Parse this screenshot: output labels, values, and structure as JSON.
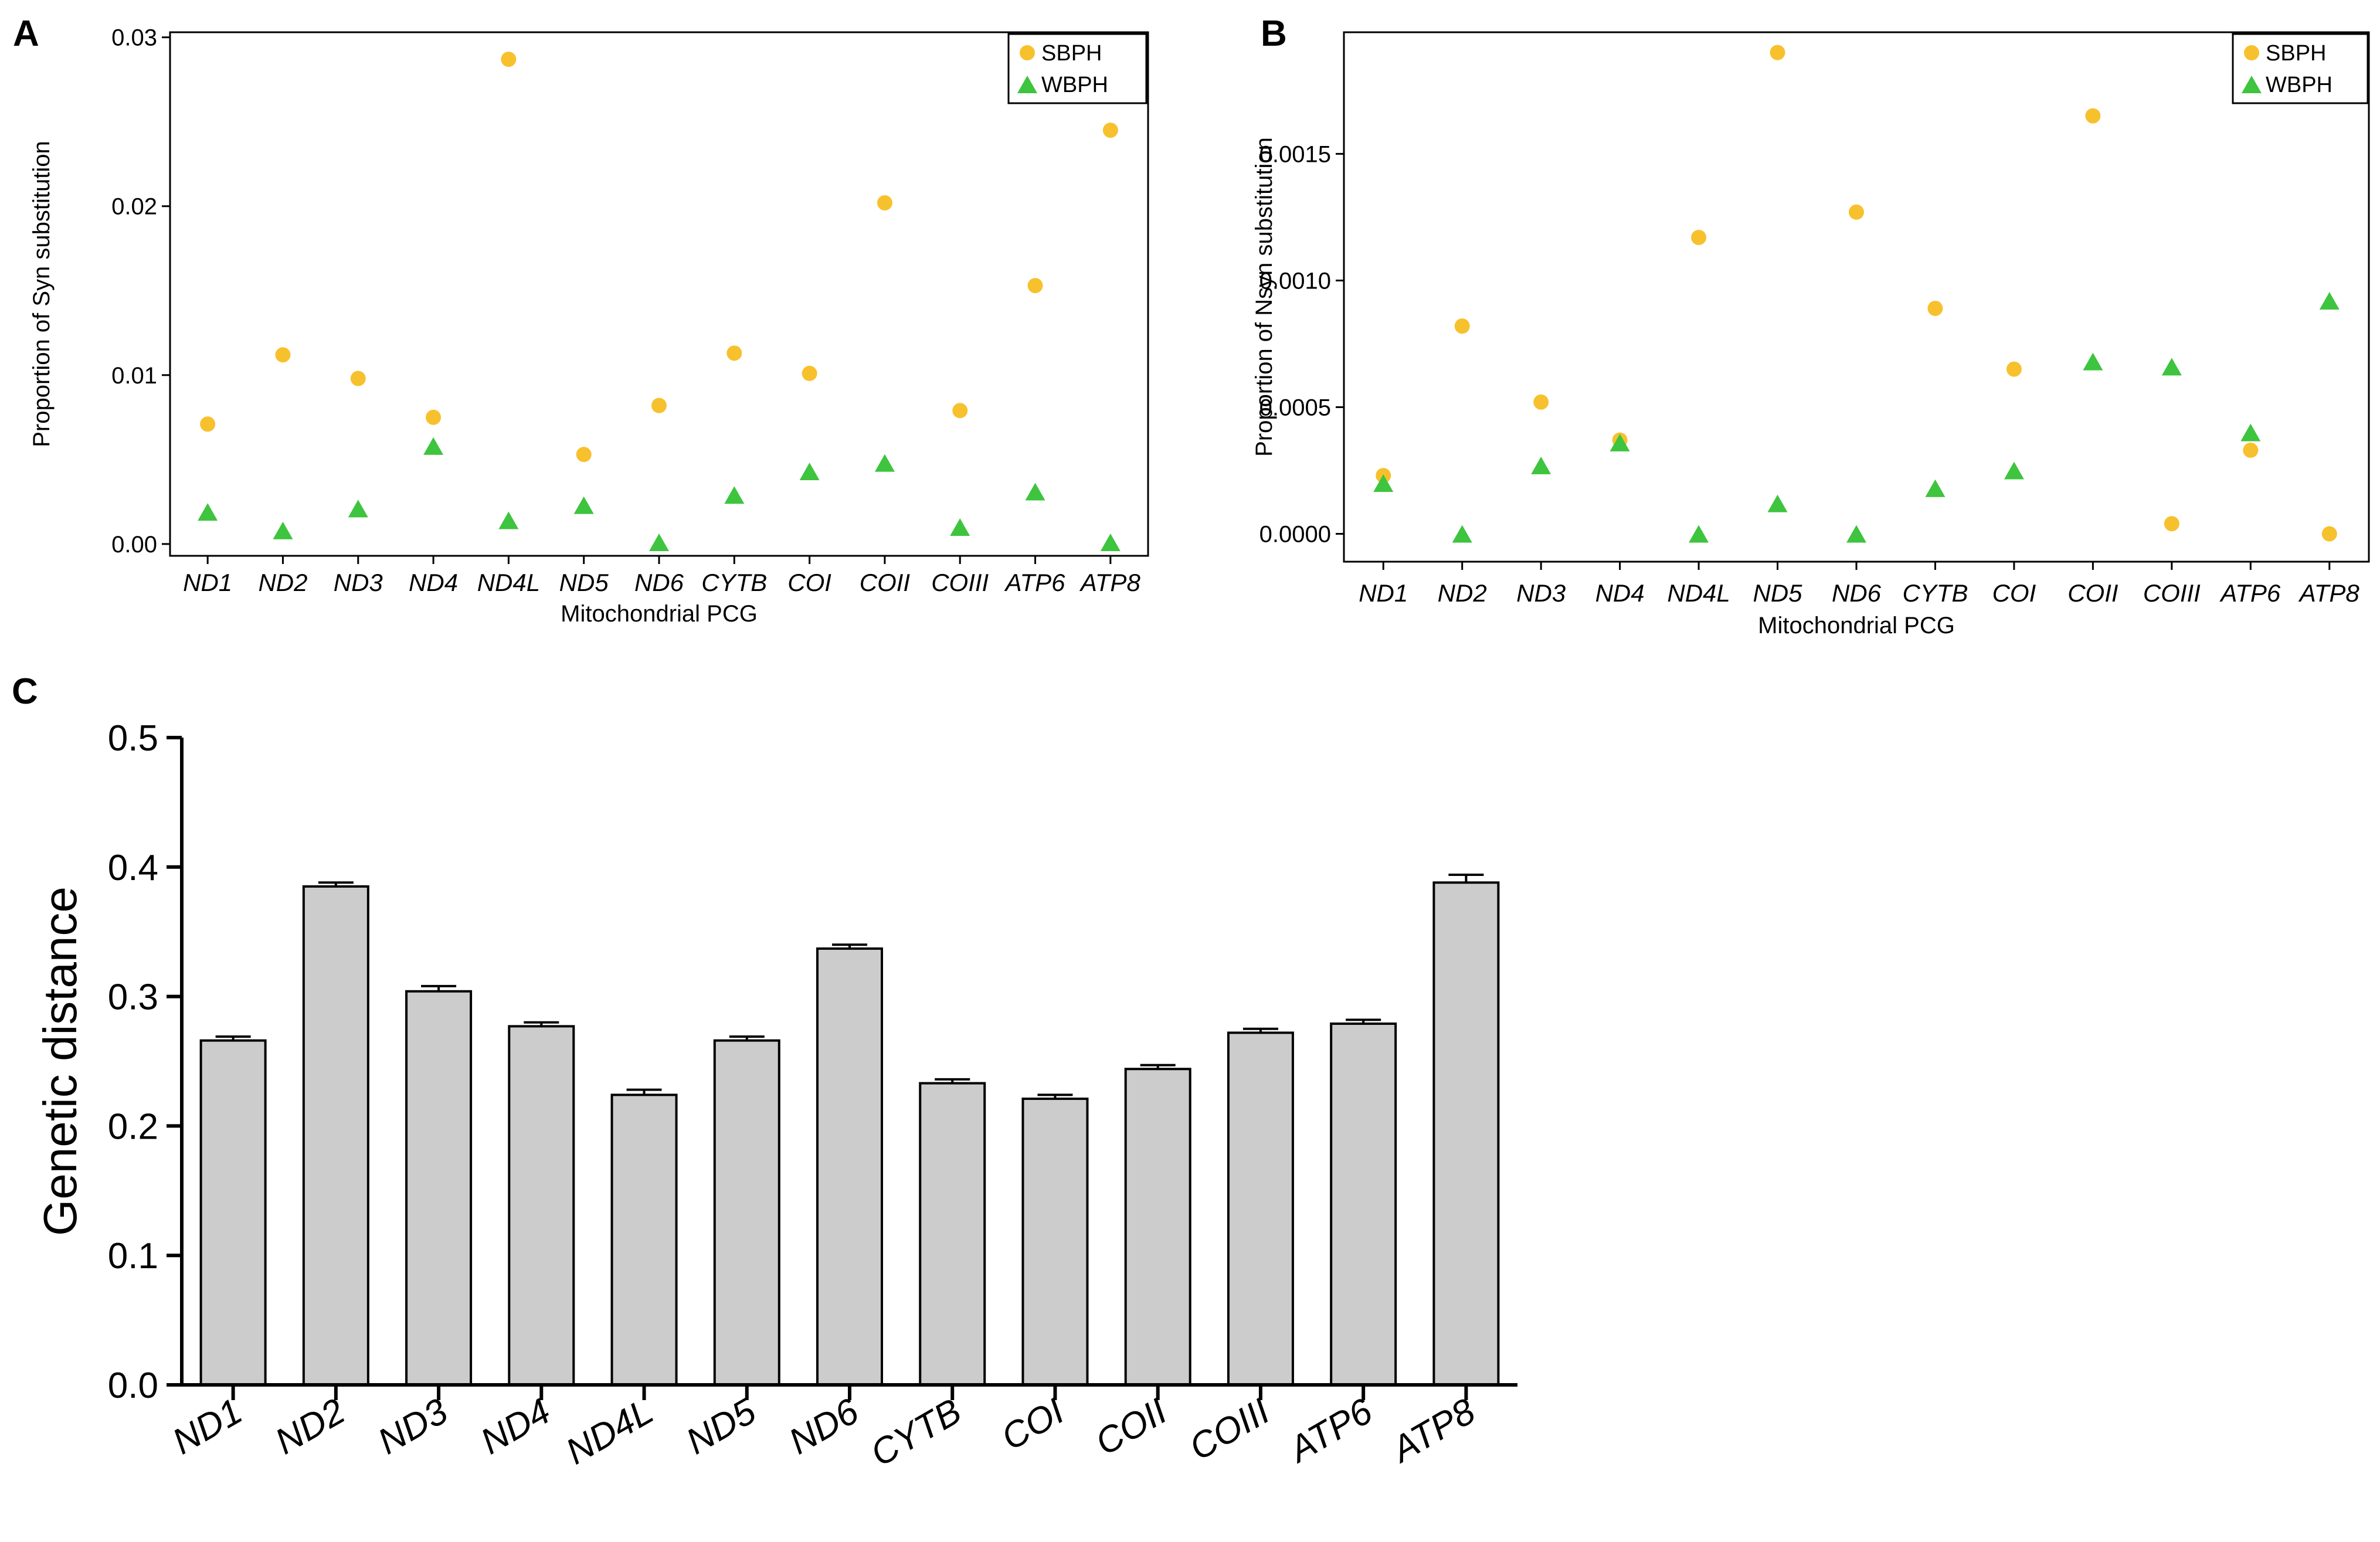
{
  "colors": {
    "sbph": "#F7C12E",
    "wbph": "#3EC43E",
    "bar": "#CCCCCC",
    "ink": "#000000"
  },
  "chart_data": [
    {
      "id": "A",
      "type": "scatter",
      "panel_label": "A",
      "ylabel": "Proportion of Syn substitution",
      "xlabel": "Mitochondrial PCG",
      "categories": [
        "ND1",
        "ND2",
        "ND3",
        "ND4",
        "ND4L",
        "ND5",
        "ND6",
        "CYTB",
        "COI",
        "COII",
        "COIII",
        "ATP6",
        "ATP8"
      ],
      "ylim": [
        -0.0007,
        0.0303
      ],
      "yticks": [
        0.0,
        0.01,
        0.02,
        0.03
      ],
      "ytick_labels": [
        "0.00",
        "0.01",
        "0.02",
        "0.03"
      ],
      "legend_position": "top-right",
      "series": [
        {
          "name": "SBPH",
          "marker": "circle",
          "values": [
            0.0071,
            0.0112,
            0.0098,
            0.0075,
            0.0287,
            0.0053,
            0.0082,
            0.0113,
            0.0101,
            0.0202,
            0.0079,
            0.0153,
            0.0245
          ]
        },
        {
          "name": "WBPH",
          "marker": "triangle",
          "values": [
            0.0019,
            0.0008,
            0.0021,
            0.0058,
            0.0014,
            0.0023,
            0.0001,
            0.0029,
            0.0043,
            0.0048,
            0.001,
            0.0031,
            0.0001
          ]
        }
      ]
    },
    {
      "id": "B",
      "type": "scatter",
      "panel_label": "B",
      "ylabel": "Proportion of Nsyn substitution",
      "xlabel": "Mitochondrial PCG",
      "categories": [
        "ND1",
        "ND2",
        "ND3",
        "ND4",
        "ND4L",
        "ND5",
        "ND6",
        "CYTB",
        "COI",
        "COII",
        "COIII",
        "ATP6",
        "ATP8"
      ],
      "ylim": [
        -0.00011,
        0.00198
      ],
      "yticks": [
        0.0,
        0.0005,
        0.001,
        0.0015
      ],
      "ytick_labels": [
        "0.0000",
        "0.0005",
        "0.0010",
        "0.0015"
      ],
      "legend_position": "top-right",
      "series": [
        {
          "name": "SBPH",
          "marker": "circle",
          "values": [
            0.00023,
            0.00082,
            0.00052,
            0.00037,
            0.00117,
            0.0019,
            0.00127,
            0.00089,
            0.00065,
            0.00165,
            4e-05,
            0.00033,
            0.0
          ]
        },
        {
          "name": "WBPH",
          "marker": "triangle",
          "values": [
            0.0002,
            0.0,
            0.00027,
            0.00036,
            0.0,
            0.00012,
            0.0,
            0.00018,
            0.00025,
            0.00068,
            0.00066,
            0.0004,
            0.00092
          ]
        }
      ]
    },
    {
      "id": "C",
      "type": "bar",
      "panel_label": "C",
      "ylabel": "Genetic distance",
      "xlabel": "",
      "categories": [
        "ND1",
        "ND2",
        "ND3",
        "ND4",
        "ND4L",
        "ND5",
        "ND6",
        "CYTB",
        "COI",
        "COII",
        "COIII",
        "ATP6",
        "ATP8"
      ],
      "ylim": [
        0,
        0.5
      ],
      "yticks": [
        0.0,
        0.1,
        0.2,
        0.3,
        0.4,
        0.5
      ],
      "ytick_labels": [
        "0.0",
        "0.1",
        "0.2",
        "0.3",
        "0.4",
        "0.5"
      ],
      "values": [
        0.266,
        0.385,
        0.304,
        0.277,
        0.224,
        0.266,
        0.337,
        0.233,
        0.221,
        0.244,
        0.272,
        0.279,
        0.388
      ],
      "errors": [
        0.003,
        0.003,
        0.004,
        0.003,
        0.004,
        0.003,
        0.003,
        0.003,
        0.003,
        0.003,
        0.003,
        0.003,
        0.006
      ]
    }
  ]
}
